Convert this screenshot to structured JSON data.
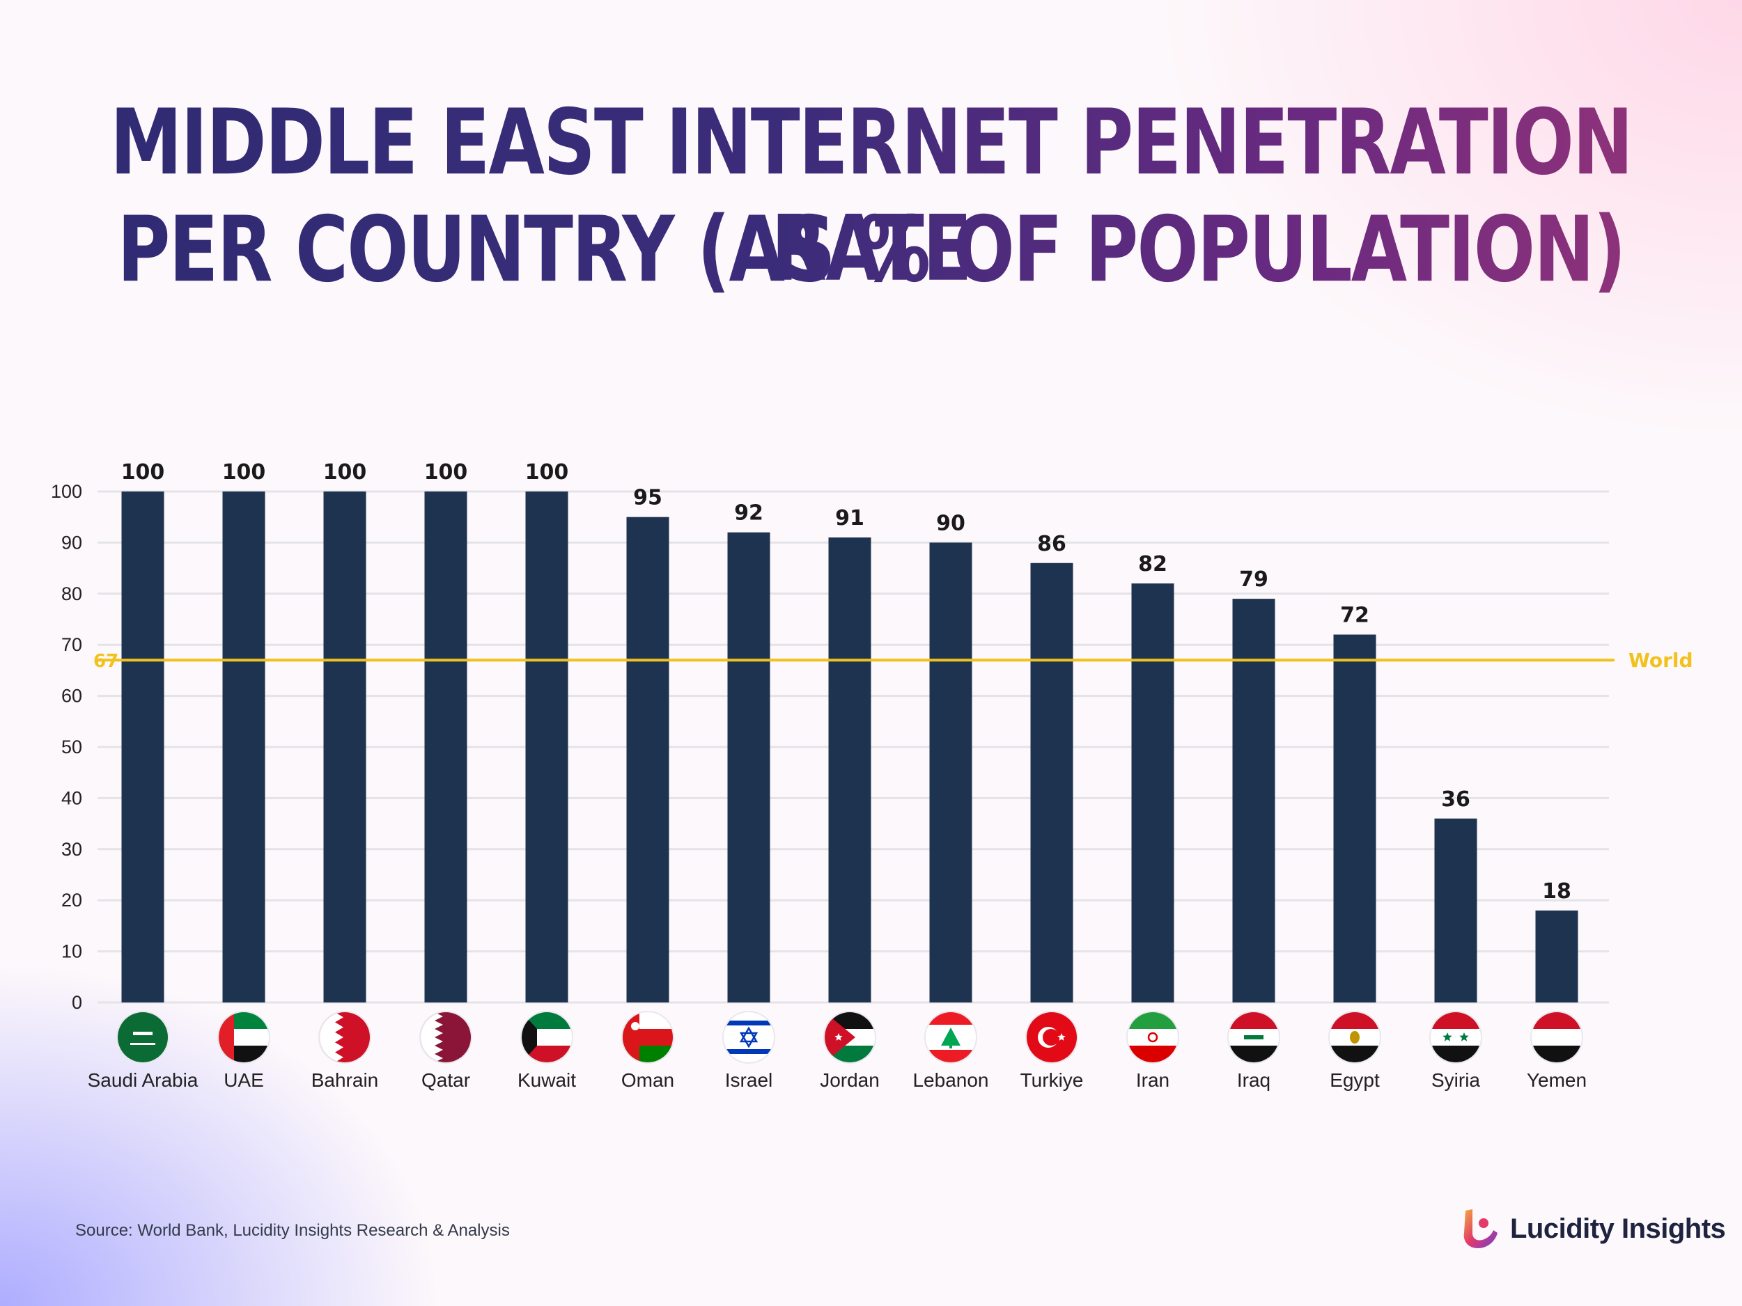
{
  "title_line1": "MIDDLE EAST INTERNET PENETRATION RATE",
  "title_line2": "PER COUNTRY (AS % OF POPULATION)",
  "source": "Source: World Bank, Lucidity Insights Research & Analysis",
  "brand": "Lucidity Insights",
  "colors": {
    "bar": "#1e334f",
    "world_line": "#f1c21b",
    "grid": "#e3e3e8",
    "axis_text": "#222222",
    "value_text": "#1a1a1a"
  },
  "chart_data": {
    "type": "bar",
    "categories": [
      "Saudi Arabia",
      "UAE",
      "Bahrain",
      "Qatar",
      "Kuwait",
      "Oman",
      "Israel",
      "Jordan",
      "Lebanon",
      "Turkiye",
      "Iran",
      "Iraq",
      "Egypt",
      "Syiria",
      "Yemen"
    ],
    "values": [
      100,
      100,
      100,
      100,
      100,
      95,
      92,
      91,
      90,
      86,
      82,
      79,
      72,
      36,
      18
    ],
    "flag_icons": [
      "saudi-arabia-flag-icon",
      "uae-flag-icon",
      "bahrain-flag-icon",
      "qatar-flag-icon",
      "kuwait-flag-icon",
      "oman-flag-icon",
      "israel-flag-icon",
      "jordan-flag-icon",
      "lebanon-flag-icon",
      "turkiye-flag-icon",
      "iran-flag-icon",
      "iraq-flag-icon",
      "egypt-flag-icon",
      "syria-flag-icon",
      "yemen-flag-icon"
    ],
    "ylim": [
      0,
      100
    ],
    "yticks": [
      0,
      10,
      20,
      30,
      40,
      50,
      60,
      70,
      80,
      90,
      100
    ],
    "grid": true,
    "reference_line": {
      "value": 67,
      "label": "World",
      "value_label": "67"
    }
  }
}
